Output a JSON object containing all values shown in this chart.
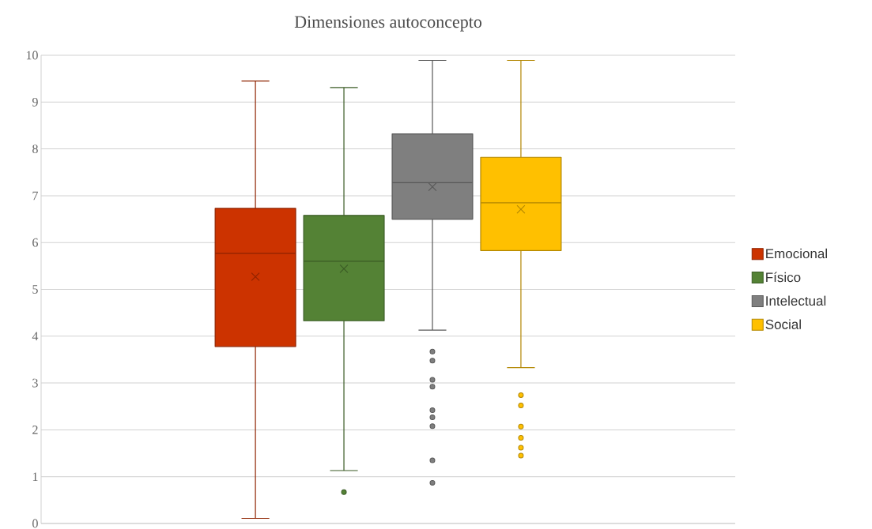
{
  "chart_data": {
    "type": "box",
    "title": "Dimensiones autoconcepto",
    "categories": [
      null
    ],
    "series": [
      {
        "name": "Emocional",
        "color": "#cc3300",
        "boxes": [
          {
            "low": 0.11,
            "q1": 3.78,
            "median": 5.77,
            "q3": 6.73,
            "high": 9.45,
            "mean": 5.27
          }
        ]
      },
      {
        "name": "Físico",
        "color": "#548235",
        "boxes": [
          {
            "low": 1.13,
            "q1": 4.33,
            "median": 5.6,
            "q3": 6.58,
            "high": 9.31,
            "mean": 5.44,
            "outliers": [
              0.67
            ]
          }
        ]
      },
      {
        "name": "Intelectual",
        "color": "#7f7f7f",
        "boxes": [
          {
            "low": 4.13,
            "q1": 6.5,
            "median": 7.28,
            "q3": 8.32,
            "high": 9.89,
            "mean": 7.19,
            "outliers": [
              3.67,
              3.48,
              3.07,
              2.92,
              2.42,
              2.27,
              2.08,
              1.35,
              0.87
            ]
          }
        ]
      },
      {
        "name": "Social",
        "color": "#ffc000",
        "boxes": [
          {
            "low": 3.33,
            "q1": 5.83,
            "median": 6.85,
            "q3": 7.82,
            "high": 9.89,
            "mean": 6.71,
            "outliers": [
              2.74,
              2.52,
              2.07,
              1.83,
              1.62,
              1.45
            ]
          }
        ]
      }
    ],
    "ylim": [
      0,
      10
    ],
    "yticks": [
      0,
      1,
      2,
      3,
      4,
      5,
      6,
      7,
      8,
      9,
      10
    ],
    "grid": "y",
    "legend": "right",
    "tick_labels": "y"
  }
}
